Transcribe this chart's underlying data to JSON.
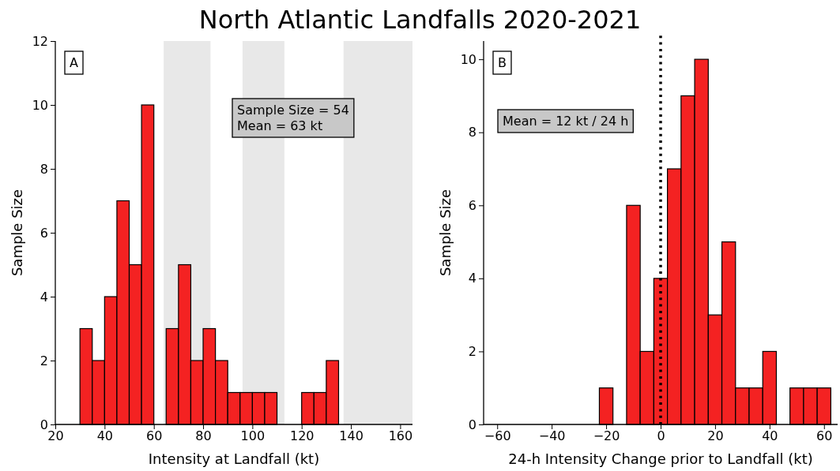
{
  "chart_data": [
    {
      "type": "histogram",
      "title": "North Atlantic Landfalls 2020-2021",
      "xlabel": "Intensity at Landfall (kt)",
      "ylabel": "Sample Size",
      "color": "#f42222",
      "bins": [
        30,
        35,
        40,
        45,
        50,
        55,
        60,
        65,
        70,
        75,
        80,
        85,
        90,
        95,
        100,
        105,
        110,
        115,
        120,
        125,
        130,
        135
      ],
      "values": [
        3,
        2,
        4,
        7,
        5,
        10,
        0,
        3,
        5,
        2,
        3,
        2,
        1,
        1,
        1,
        1,
        0,
        0,
        1,
        1,
        2
      ],
      "xlim": [
        20,
        165
      ],
      "xticks": [
        20,
        40,
        60,
        80,
        100,
        120,
        140,
        160
      ],
      "ylim": [
        0,
        12
      ],
      "yticks": [
        0,
        2,
        4,
        6,
        8,
        10,
        12
      ],
      "bands": [
        {
          "axis": "x",
          "from": 64,
          "to": 83,
          "color": "#e8e8e8"
        },
        {
          "axis": "x",
          "from": 96,
          "to": 113,
          "color": "#e8e8e8"
        },
        {
          "axis": "x",
          "from": 137,
          "to": 165,
          "color": "#e8e8e8"
        }
      ],
      "annotations": [
        "A",
        "Sample Size = 54\nMean = 63 kt"
      ],
      "grid": false
    },
    {
      "type": "histogram",
      "xlabel": "24-h Intensity Change prior to Landfall (kt)",
      "ylabel": "Sample Size",
      "color": "#f42222",
      "bins": [
        -22.5,
        -17.5,
        -12.5,
        -7.5,
        -2.5,
        2.5,
        7.5,
        12.5,
        17.5,
        22.5,
        27.5,
        32.5,
        37.5,
        42.5,
        47.5,
        52.5,
        57.5,
        62.5
      ],
      "values": [
        1,
        0,
        6,
        2,
        4,
        7,
        9,
        10,
        3,
        5,
        1,
        1,
        2,
        0,
        1,
        1,
        1
      ],
      "xlim": [
        -65,
        65
      ],
      "xticks": [
        {
          "value": -60,
          "label": "−60"
        },
        {
          "value": -40,
          "label": "−40"
        },
        {
          "value": -20,
          "label": "−20"
        },
        0,
        20,
        40,
        60
      ],
      "ylim": [
        0,
        10.5
      ],
      "yticks": [
        0,
        2,
        4,
        6,
        8,
        10
      ],
      "ref_lines": [
        {
          "axis": "x",
          "value": 0,
          "color": "#000000",
          "line_style": "dotted"
        }
      ],
      "annotations": [
        "B",
        "Mean = 12 kt / 24 h"
      ],
      "grid": false
    }
  ]
}
